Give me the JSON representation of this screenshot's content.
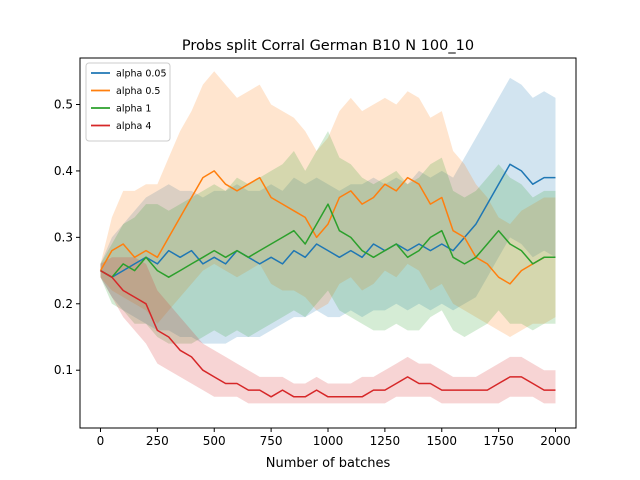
{
  "chart_data": {
    "type": "line",
    "title": "Probs split Corral German B10 N 100_10",
    "xlabel": "Number of batches",
    "ylabel": "",
    "xlim": [
      -90,
      2090
    ],
    "ylim": [
      0.013,
      0.57
    ],
    "xticks": [
      0,
      250,
      500,
      750,
      1000,
      1250,
      1500,
      1750,
      2000
    ],
    "yticks": [
      0.1,
      0.2,
      0.3,
      0.4,
      0.5
    ],
    "grid": false,
    "legend_position": "top-left",
    "shaded_band": true,
    "series": [
      {
        "name": "alpha 0.05",
        "color": "#1f77b4",
        "x": [
          0,
          50,
          100,
          150,
          200,
          250,
          300,
          350,
          400,
          450,
          500,
          550,
          600,
          650,
          700,
          750,
          800,
          850,
          900,
          950,
          1000,
          1050,
          1100,
          1150,
          1200,
          1250,
          1300,
          1350,
          1400,
          1450,
          1500,
          1550,
          1600,
          1650,
          1700,
          1750,
          1800,
          1850,
          1900,
          1950,
          2000
        ],
        "y": [
          0.25,
          0.24,
          0.25,
          0.26,
          0.27,
          0.26,
          0.28,
          0.27,
          0.28,
          0.26,
          0.27,
          0.26,
          0.28,
          0.27,
          0.26,
          0.27,
          0.26,
          0.28,
          0.27,
          0.29,
          0.28,
          0.27,
          0.28,
          0.27,
          0.29,
          0.28,
          0.29,
          0.28,
          0.29,
          0.28,
          0.29,
          0.28,
          0.3,
          0.32,
          0.35,
          0.38,
          0.41,
          0.4,
          0.38,
          0.39,
          0.39
        ],
        "lower": [
          0.24,
          0.21,
          0.19,
          0.18,
          0.17,
          0.16,
          0.16,
          0.15,
          0.15,
          0.14,
          0.14,
          0.14,
          0.15,
          0.15,
          0.15,
          0.16,
          0.17,
          0.18,
          0.18,
          0.19,
          0.18,
          0.18,
          0.19,
          0.18,
          0.19,
          0.19,
          0.2,
          0.19,
          0.2,
          0.19,
          0.2,
          0.19,
          0.2,
          0.21,
          0.24,
          0.27,
          0.3,
          0.29,
          0.27,
          0.28,
          0.27
        ],
        "upper": [
          0.26,
          0.3,
          0.32,
          0.34,
          0.36,
          0.37,
          0.38,
          0.37,
          0.37,
          0.36,
          0.37,
          0.37,
          0.38,
          0.37,
          0.37,
          0.38,
          0.37,
          0.39,
          0.38,
          0.39,
          0.38,
          0.37,
          0.38,
          0.38,
          0.39,
          0.38,
          0.39,
          0.38,
          0.4,
          0.39,
          0.4,
          0.39,
          0.42,
          0.45,
          0.48,
          0.51,
          0.54,
          0.53,
          0.51,
          0.52,
          0.51
        ]
      },
      {
        "name": "alpha 0.5",
        "color": "#ff7f0e",
        "x": [
          0,
          50,
          100,
          150,
          200,
          250,
          300,
          350,
          400,
          450,
          500,
          550,
          600,
          650,
          700,
          750,
          800,
          850,
          900,
          950,
          1000,
          1050,
          1100,
          1150,
          1200,
          1250,
          1300,
          1350,
          1400,
          1450,
          1500,
          1550,
          1600,
          1650,
          1700,
          1750,
          1800,
          1850,
          1900,
          1950,
          2000
        ],
        "y": [
          0.25,
          0.28,
          0.29,
          0.27,
          0.28,
          0.27,
          0.3,
          0.33,
          0.36,
          0.39,
          0.4,
          0.38,
          0.37,
          0.38,
          0.39,
          0.36,
          0.35,
          0.34,
          0.33,
          0.3,
          0.32,
          0.36,
          0.37,
          0.35,
          0.36,
          0.38,
          0.37,
          0.39,
          0.38,
          0.35,
          0.36,
          0.31,
          0.3,
          0.27,
          0.26,
          0.24,
          0.23,
          0.25,
          0.26,
          0.27,
          0.27
        ],
        "lower": [
          0.24,
          0.22,
          0.21,
          0.2,
          0.19,
          0.17,
          0.19,
          0.21,
          0.23,
          0.25,
          0.26,
          0.25,
          0.24,
          0.25,
          0.26,
          0.23,
          0.22,
          0.22,
          0.21,
          0.19,
          0.2,
          0.23,
          0.24,
          0.22,
          0.23,
          0.25,
          0.24,
          0.26,
          0.25,
          0.22,
          0.23,
          0.2,
          0.19,
          0.18,
          0.17,
          0.16,
          0.15,
          0.16,
          0.17,
          0.17,
          0.18
        ],
        "upper": [
          0.26,
          0.33,
          0.37,
          0.37,
          0.38,
          0.38,
          0.42,
          0.46,
          0.49,
          0.53,
          0.55,
          0.53,
          0.51,
          0.52,
          0.53,
          0.5,
          0.49,
          0.48,
          0.46,
          0.43,
          0.45,
          0.49,
          0.51,
          0.49,
          0.5,
          0.51,
          0.5,
          0.52,
          0.51,
          0.48,
          0.49,
          0.43,
          0.41,
          0.38,
          0.36,
          0.33,
          0.32,
          0.34,
          0.35,
          0.36,
          0.36
        ]
      },
      {
        "name": "alpha 1",
        "color": "#2ca02c",
        "x": [
          0,
          50,
          100,
          150,
          200,
          250,
          300,
          350,
          400,
          450,
          500,
          550,
          600,
          650,
          700,
          750,
          800,
          850,
          900,
          950,
          1000,
          1050,
          1100,
          1150,
          1200,
          1250,
          1300,
          1350,
          1400,
          1450,
          1500,
          1550,
          1600,
          1650,
          1700,
          1750,
          1800,
          1850,
          1900,
          1950,
          2000
        ],
        "y": [
          0.25,
          0.24,
          0.26,
          0.25,
          0.27,
          0.25,
          0.24,
          0.25,
          0.26,
          0.27,
          0.28,
          0.27,
          0.28,
          0.27,
          0.28,
          0.29,
          0.3,
          0.31,
          0.29,
          0.32,
          0.35,
          0.31,
          0.3,
          0.28,
          0.27,
          0.28,
          0.29,
          0.27,
          0.28,
          0.3,
          0.31,
          0.27,
          0.26,
          0.27,
          0.29,
          0.31,
          0.29,
          0.28,
          0.26,
          0.27,
          0.27
        ],
        "lower": [
          0.24,
          0.2,
          0.19,
          0.17,
          0.17,
          0.15,
          0.14,
          0.14,
          0.14,
          0.15,
          0.16,
          0.15,
          0.16,
          0.15,
          0.16,
          0.17,
          0.18,
          0.19,
          0.18,
          0.2,
          0.22,
          0.19,
          0.18,
          0.17,
          0.16,
          0.16,
          0.17,
          0.16,
          0.16,
          0.18,
          0.19,
          0.16,
          0.15,
          0.16,
          0.17,
          0.19,
          0.17,
          0.17,
          0.16,
          0.17,
          0.17
        ],
        "upper": [
          0.26,
          0.29,
          0.32,
          0.33,
          0.35,
          0.35,
          0.34,
          0.35,
          0.36,
          0.37,
          0.38,
          0.37,
          0.39,
          0.38,
          0.39,
          0.4,
          0.41,
          0.43,
          0.4,
          0.43,
          0.46,
          0.42,
          0.41,
          0.39,
          0.38,
          0.39,
          0.4,
          0.38,
          0.39,
          0.41,
          0.42,
          0.37,
          0.36,
          0.37,
          0.39,
          0.41,
          0.39,
          0.38,
          0.36,
          0.37,
          0.37
        ]
      },
      {
        "name": "alpha 4",
        "color": "#d62728",
        "x": [
          0,
          50,
          100,
          150,
          200,
          250,
          300,
          350,
          400,
          450,
          500,
          550,
          600,
          650,
          700,
          750,
          800,
          850,
          900,
          950,
          1000,
          1050,
          1100,
          1150,
          1200,
          1250,
          1300,
          1350,
          1400,
          1450,
          1500,
          1550,
          1600,
          1650,
          1700,
          1750,
          1800,
          1850,
          1900,
          1950,
          2000
        ],
        "y": [
          0.25,
          0.24,
          0.22,
          0.21,
          0.2,
          0.16,
          0.15,
          0.13,
          0.12,
          0.1,
          0.09,
          0.08,
          0.08,
          0.07,
          0.07,
          0.06,
          0.07,
          0.06,
          0.06,
          0.07,
          0.06,
          0.06,
          0.06,
          0.06,
          0.07,
          0.07,
          0.08,
          0.09,
          0.08,
          0.08,
          0.07,
          0.07,
          0.07,
          0.07,
          0.07,
          0.08,
          0.09,
          0.09,
          0.08,
          0.07,
          0.07
        ],
        "lower": [
          0.24,
          0.21,
          0.18,
          0.16,
          0.14,
          0.11,
          0.1,
          0.09,
          0.08,
          0.07,
          0.06,
          0.06,
          0.06,
          0.05,
          0.05,
          0.05,
          0.05,
          0.05,
          0.05,
          0.05,
          0.05,
          0.05,
          0.05,
          0.05,
          0.05,
          0.05,
          0.06,
          0.06,
          0.06,
          0.06,
          0.05,
          0.05,
          0.05,
          0.05,
          0.05,
          0.05,
          0.06,
          0.06,
          0.06,
          0.05,
          0.05
        ],
        "upper": [
          0.26,
          0.27,
          0.27,
          0.27,
          0.26,
          0.22,
          0.2,
          0.18,
          0.16,
          0.14,
          0.13,
          0.12,
          0.11,
          0.1,
          0.09,
          0.09,
          0.09,
          0.08,
          0.08,
          0.09,
          0.08,
          0.08,
          0.08,
          0.09,
          0.09,
          0.1,
          0.11,
          0.12,
          0.11,
          0.11,
          0.1,
          0.09,
          0.09,
          0.09,
          0.1,
          0.11,
          0.12,
          0.12,
          0.11,
          0.1,
          0.1
        ]
      }
    ]
  }
}
